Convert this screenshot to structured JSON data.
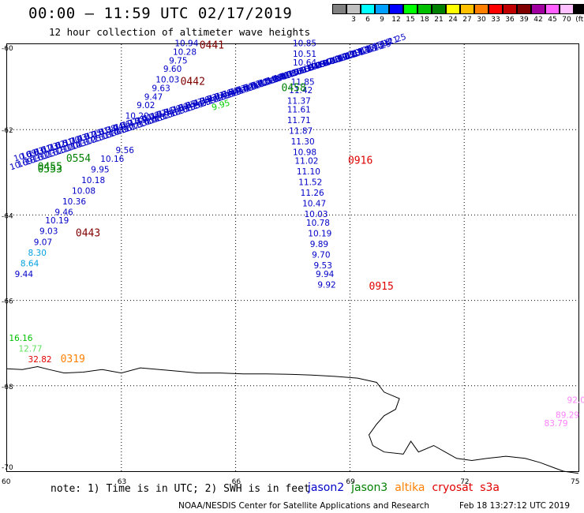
{
  "header": {
    "title": "00:00 – 11:59 UTC 02/17/2019",
    "subtitle": "12 hour collection of altimeter wave heights"
  },
  "scale": {
    "unit": "(ft)",
    "bins": [
      {
        "label": "",
        "color": "#808080"
      },
      {
        "label": "3",
        "color": "#c0c0c0"
      },
      {
        "label": "6",
        "color": "#00ffff"
      },
      {
        "label": "9",
        "color": "#00a0ff"
      },
      {
        "label": "12",
        "color": "#0000ff"
      },
      {
        "label": "15",
        "color": "#00ff00"
      },
      {
        "label": "18",
        "color": "#00c000"
      },
      {
        "label": "21",
        "color": "#008000"
      },
      {
        "label": "24",
        "color": "#ffff00"
      },
      {
        "label": "27",
        "color": "#ffc000"
      },
      {
        "label": "30",
        "color": "#ff8000"
      },
      {
        "label": "33",
        "color": "#ff0000"
      },
      {
        "label": "36",
        "color": "#c00000"
      },
      {
        "label": "39",
        "color": "#800000"
      },
      {
        "label": "42",
        "color": "#a000a0"
      },
      {
        "label": "45",
        "color": "#ff60ff"
      },
      {
        "label": "70",
        "color": "#ffc0ff"
      },
      {
        "label": "",
        "color": "#000000"
      }
    ]
  },
  "axes": {
    "lat_labels": [
      "-60",
      "-62",
      "-64",
      "-66",
      "-68",
      "-70"
    ],
    "lon_labels": [
      "60",
      "63",
      "66",
      "69",
      "72",
      "75"
    ]
  },
  "colors": {
    "jason2": "#0000c8",
    "jason3": "#008000",
    "altika": "#ff8000",
    "cryosat": "#e00000",
    "s3a": "#e00000",
    "dark_red": "#800000",
    "light_blue": "#00a0e0",
    "light_green": "#00d000",
    "pink": "#ff80ff"
  },
  "map_data": {
    "tracks": [
      {
        "time": "0441",
        "time_color": "#800000",
        "points": [
          {
            "v": "10.94",
            "c": "#0000c8",
            "lon": 64.4,
            "lat": -60.05
          },
          {
            "v": "10.28",
            "c": "#0000c8",
            "lon": 64.35,
            "lat": -60.25
          },
          {
            "v": "9.75",
            "c": "#0000c8",
            "lon": 64.25,
            "lat": -60.45
          },
          {
            "v": "9.60",
            "c": "#0000c8",
            "lon": 64.1,
            "lat": -60.65
          },
          {
            "v": "10.03",
            "c": "#0000c8",
            "lon": 63.9,
            "lat": -60.9
          },
          {
            "v": "9.63",
            "c": "#0000c8",
            "lon": 63.8,
            "lat": -61.1
          },
          {
            "v": "9.47",
            "c": "#0000c8",
            "lon": 63.6,
            "lat": -61.3
          },
          {
            "v": "9.02",
            "c": "#0000c8",
            "lon": 63.4,
            "lat": -61.5
          },
          {
            "v": "10.20",
            "c": "#0000c8",
            "lon": 63.1,
            "lat": -61.75
          }
        ]
      },
      {
        "time": "0442",
        "time_color": "#800000",
        "points": [
          {
            "v": "9.56",
            "c": "#0000c8",
            "lon": 62.85,
            "lat": -62.55
          },
          {
            "v": "10.16",
            "c": "#0000c8",
            "lon": 62.45,
            "lat": -62.75
          },
          {
            "v": "9.95",
            "c": "#0000c8",
            "lon": 62.2,
            "lat": -63.0
          },
          {
            "v": "10.18",
            "c": "#0000c8",
            "lon": 61.95,
            "lat": -63.25
          },
          {
            "v": "10.08",
            "c": "#0000c8",
            "lon": 61.7,
            "lat": -63.5
          },
          {
            "v": "10.36",
            "c": "#0000c8",
            "lon": 61.45,
            "lat": -63.75
          },
          {
            "v": "9.46",
            "c": "#0000c8",
            "lon": 61.25,
            "lat": -64.0
          },
          {
            "v": "10.19",
            "c": "#0000c8",
            "lon": 61.0,
            "lat": -64.2
          },
          {
            "v": "9.03",
            "c": "#0000c8",
            "lon": 60.85,
            "lat": -64.45
          },
          {
            "v": "9.07",
            "c": "#0000c8",
            "lon": 60.7,
            "lat": -64.7
          },
          {
            "v": "8.30",
            "c": "#00a0e0",
            "lon": 60.55,
            "lat": -64.95
          },
          {
            "v": "8.64",
            "c": "#00a0e0",
            "lon": 60.35,
            "lat": -65.2
          },
          {
            "v": "9.44",
            "c": "#0000c8",
            "lon": 60.2,
            "lat": -65.45
          }
        ]
      },
      {
        "time": "0443",
        "time_color": "#800000",
        "points": []
      },
      {
        "time": "0916",
        "time_color": "#e00000",
        "points": [
          {
            "v": "10.85",
            "c": "#0000c8",
            "lon": 67.5,
            "lat": -60.05
          },
          {
            "v": "10.51",
            "c": "#0000c8",
            "lon": 67.5,
            "lat": -60.3
          },
          {
            "v": "10.64",
            "c": "#0000c8",
            "lon": 67.5,
            "lat": -60.5
          },
          {
            "v": "11.85",
            "c": "#0000c8",
            "lon": 67.45,
            "lat": -60.95
          },
          {
            "v": "11.42",
            "c": "#0000c8",
            "lon": 67.4,
            "lat": -61.15
          },
          {
            "v": "11.37",
            "c": "#0000c8",
            "lon": 67.35,
            "lat": -61.4
          },
          {
            "v": "11.61",
            "c": "#0000c8",
            "lon": 67.35,
            "lat": -61.6
          },
          {
            "v": "11.71",
            "c": "#0000c8",
            "lon": 67.35,
            "lat": -61.85
          },
          {
            "v": "11.87",
            "c": "#0000c8",
            "lon": 67.4,
            "lat": -62.1
          },
          {
            "v": "11.30",
            "c": "#0000c8",
            "lon": 67.45,
            "lat": -62.35
          },
          {
            "v": "10.98",
            "c": "#0000c8",
            "lon": 67.5,
            "lat": -62.6
          },
          {
            "v": "11.02",
            "c": "#0000c8",
            "lon": 67.55,
            "lat": -62.8
          }
        ]
      },
      {
        "time": "0915",
        "time_color": "#e00000",
        "points": [
          {
            "v": "11.10",
            "c": "#0000c8",
            "lon": 67.6,
            "lat": -63.05
          },
          {
            "v": "11.52",
            "c": "#0000c8",
            "lon": 67.65,
            "lat": -63.3
          },
          {
            "v": "11.26",
            "c": "#0000c8",
            "lon": 67.7,
            "lat": -63.55
          },
          {
            "v": "10.47",
            "c": "#0000c8",
            "lon": 67.75,
            "lat": -63.8
          },
          {
            "v": "10.03",
            "c": "#0000c8",
            "lon": 67.8,
            "lat": -64.05
          },
          {
            "v": "10.78",
            "c": "#0000c8",
            "lon": 67.85,
            "lat": -64.25
          },
          {
            "v": "10.19",
            "c": "#0000c8",
            "lon": 67.9,
            "lat": -64.5
          },
          {
            "v": "9.89",
            "c": "#0000c8",
            "lon": 67.95,
            "lat": -64.75
          },
          {
            "v": "9.70",
            "c": "#0000c8",
            "lon": 68.0,
            "lat": -65.0
          },
          {
            "v": "9.53",
            "c": "#0000c8",
            "lon": 68.05,
            "lat": -65.25
          },
          {
            "v": "9.94",
            "c": "#0000c8",
            "lon": 68.1,
            "lat": -65.45
          },
          {
            "v": "9.92",
            "c": "#0000c8",
            "lon": 68.15,
            "lat": -65.7
          }
        ]
      },
      {
        "time": "0319",
        "time_color": "#ff8000",
        "points": [
          {
            "v": "16.16",
            "c": "#00c000",
            "lon": 60.05,
            "lat": -66.95
          },
          {
            "v": "12.77",
            "c": "#60e060",
            "lon": 60.3,
            "lat": -67.2
          },
          {
            "v": "32.82",
            "c": "#e00000",
            "lon": 60.55,
            "lat": -67.45
          }
        ]
      },
      {
        "time": "",
        "time_color": "#ff80ff",
        "points": [
          {
            "v": "92.0",
            "c": "#ff80ff",
            "lon": 74.7,
            "lat": -68.4
          },
          {
            "v": "89.29",
            "c": "#ff80ff",
            "lon": 74.4,
            "lat": -68.75
          },
          {
            "v": "83.79",
            "c": "#ff80ff",
            "lon": 74.1,
            "lat": -68.95
          }
        ]
      }
    ],
    "crossing_tracks": [
      {
        "time": "0553",
        "time_color": "#008000",
        "start": {
          "lon": 60.1,
          "lat": -62.95
        },
        "end": {
          "lon": 69.9,
          "lat": -60.05
        },
        "values": [
          "10.69",
          "10.83",
          "10.61",
          "10.73",
          "10.62",
          "10.51",
          "10.70",
          "10.43",
          "10.37",
          "10.25",
          "10.51",
          "10.38",
          "10.44",
          "10.56",
          "10.27",
          "10.33",
          "10.41",
          "10.48",
          "10.52",
          "10.36",
          "10.29",
          "10.60",
          "10.55",
          "10.47",
          "10.39",
          "10.72",
          "10.81",
          "10.66",
          "10.58",
          "10.43",
          "10.50",
          "10.62",
          "10.71",
          "10.54",
          "10.49",
          "10.77",
          "10.63",
          "10.58",
          "10.91",
          "10.84",
          "10.79",
          "10.87",
          "10.92",
          "10.99",
          "11.02",
          "11.07",
          "11.13",
          "11.18",
          "11.21",
          "11.25"
        ]
      },
      {
        "time": "0554",
        "time_color": "#008000",
        "start": {
          "lon": 60.2,
          "lat": -62.75
        },
        "end": {
          "lon": 69.5,
          "lat": -60.2
        },
        "values": []
      }
    ],
    "extra_time_labels": [
      {
        "t": "0455",
        "c": "#008000",
        "lon": 60.8,
        "lat": -62.95
      },
      {
        "t": "0458",
        "c": "#008000",
        "lon": 67.2,
        "lat": -61.1
      }
    ],
    "coast": [
      [
        60.0,
        -67.6
      ],
      [
        60.4,
        -67.62
      ],
      [
        60.8,
        -67.55
      ],
      [
        61.1,
        -67.62
      ],
      [
        61.5,
        -67.7
      ],
      [
        62.0,
        -67.68
      ],
      [
        62.5,
        -67.62
      ],
      [
        63.0,
        -67.7
      ],
      [
        63.5,
        -67.58
      ],
      [
        64.0,
        -67.62
      ],
      [
        64.5,
        -67.66
      ],
      [
        65.0,
        -67.7
      ],
      [
        65.6,
        -67.7
      ],
      [
        66.2,
        -67.72
      ],
      [
        66.8,
        -67.72
      ],
      [
        67.4,
        -67.73
      ],
      [
        68.0,
        -67.75
      ],
      [
        68.6,
        -67.78
      ],
      [
        69.2,
        -67.82
      ],
      [
        69.7,
        -67.92
      ],
      [
        69.9,
        -68.15
      ],
      [
        70.3,
        -68.3
      ],
      [
        70.2,
        -68.55
      ],
      [
        69.9,
        -68.7
      ],
      [
        69.7,
        -68.9
      ],
      [
        69.5,
        -69.15
      ],
      [
        69.6,
        -69.4
      ],
      [
        69.9,
        -69.55
      ],
      [
        70.4,
        -69.6
      ],
      [
        70.6,
        -69.3
      ],
      [
        70.8,
        -69.55
      ],
      [
        71.2,
        -69.4
      ],
      [
        71.5,
        -69.55
      ],
      [
        71.8,
        -69.7
      ],
      [
        72.2,
        -69.75
      ],
      [
        72.6,
        -69.7
      ],
      [
        73.1,
        -69.65
      ],
      [
        73.6,
        -69.7
      ],
      [
        74.0,
        -69.8
      ],
      [
        74.3,
        -69.9
      ],
      [
        74.6,
        -70.0
      ],
      [
        75.0,
        -70.05
      ]
    ]
  },
  "footer": {
    "note": "note: 1) Time is in UTC; 2) SWH is in feet",
    "satellites": [
      {
        "name": "jason2",
        "color": "#0000c8"
      },
      {
        "name": "jason3",
        "color": "#008000"
      },
      {
        "name": "altika",
        "color": "#ff8000"
      },
      {
        "name": "cryosat",
        "color": "#e00000"
      },
      {
        "name": "s3a",
        "color": "#e00000"
      }
    ],
    "credit": "NOAA/NESDIS Center for Satellite Applications and Research",
    "stamp": "Feb 18 13:27:12 UTC 2019"
  }
}
